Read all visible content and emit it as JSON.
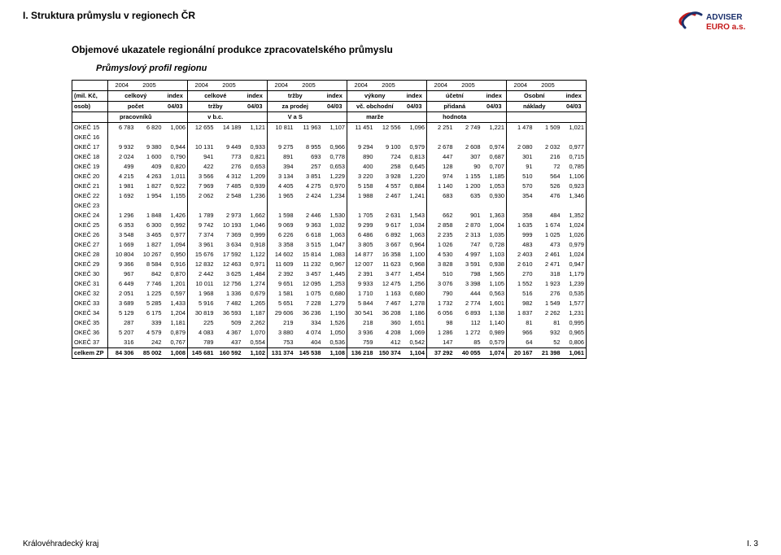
{
  "section_title": "I. Struktura průmyslu v regionech ČR",
  "subtitle": "Objemové ukazatele regionální produkce zpracovatelského průmyslu",
  "profile": "Průmyslový profil regionu",
  "footer_left": "Královéhradecký kraj",
  "footer_right": "I. 3",
  "logo": {
    "top_text": "ADVISER",
    "bottom_text": "EURO a.s.",
    "accent1": "#c51a1a",
    "accent2": "#1a2f6b"
  },
  "colors": {
    "text": "#000000",
    "bg": "#ffffff",
    "border": "#000000"
  },
  "years_row": [
    "2004",
    "2005",
    "",
    "2004",
    "2005",
    "",
    "2004",
    "2005",
    "",
    "2004",
    "2005",
    "",
    "2004",
    "2005",
    "",
    "2004",
    "2005",
    ""
  ],
  "header": {
    "row1_left": "(mil. Kč,",
    "row2_left": "osob)",
    "row1": [
      "celkový",
      "index",
      "celkové",
      "index",
      "tržby",
      "index",
      "výkony",
      "index",
      "účetní",
      "index",
      "Osobní",
      "index"
    ],
    "row2": [
      "počet",
      "04/03",
      "tržby",
      "04/03",
      "za prodej",
      "04/03",
      "vč. obchodní",
      "04/03",
      "přidaná",
      "04/03",
      "náklady",
      "04/03"
    ],
    "row3_left": "",
    "row3": [
      "pracovníků",
      "",
      "v b.c.",
      "",
      "V a S",
      "",
      "marže",
      "",
      "hodnota",
      "",
      "",
      ""
    ]
  },
  "rows": [
    {
      "label": "OKEČ 15",
      "v": [
        "6 783",
        "6 820",
        "1,006",
        "12 655",
        "14 189",
        "1,121",
        "10 811",
        "11 963",
        "1,107",
        "11 451",
        "12 556",
        "1,096",
        "2 251",
        "2 749",
        "1,221",
        "1 478",
        "1 509",
        "1,021"
      ]
    },
    {
      "label": "OKEČ 16",
      "v": [
        "",
        "",
        "",
        "",
        "",
        "",
        "",
        "",
        "",
        "",
        "",
        "",
        "",
        "",
        "",
        "",
        "",
        ""
      ]
    },
    {
      "label": "OKEČ 17",
      "v": [
        "9 932",
        "9 380",
        "0,944",
        "10 131",
        "9 449",
        "0,933",
        "9 275",
        "8 955",
        "0,966",
        "9 294",
        "9 100",
        "0,979",
        "2 678",
        "2 608",
        "0,974",
        "2 080",
        "2 032",
        "0,977"
      ]
    },
    {
      "label": "OKEČ 18",
      "v": [
        "2 024",
        "1 600",
        "0,790",
        "941",
        "773",
        "0,821",
        "891",
        "693",
        "0,778",
        "890",
        "724",
        "0,813",
        "447",
        "307",
        "0,687",
        "301",
        "216",
        "0,715"
      ]
    },
    {
      "label": "OKEČ 19",
      "v": [
        "499",
        "409",
        "0,820",
        "422",
        "276",
        "0,653",
        "394",
        "257",
        "0,653",
        "400",
        "258",
        "0,645",
        "128",
        "90",
        "0,707",
        "91",
        "72",
        "0,785"
      ]
    },
    {
      "label": "OKEČ 20",
      "v": [
        "4 215",
        "4 263",
        "1,011",
        "3 566",
        "4 312",
        "1,209",
        "3 134",
        "3 851",
        "1,229",
        "3 220",
        "3 928",
        "1,220",
        "974",
        "1 155",
        "1,185",
        "510",
        "564",
        "1,106"
      ]
    },
    {
      "label": "OKEČ 21",
      "v": [
        "1 981",
        "1 827",
        "0,922",
        "7 969",
        "7 485",
        "0,939",
        "4 405",
        "4 275",
        "0,970",
        "5 158",
        "4 557",
        "0,884",
        "1 140",
        "1 200",
        "1,053",
        "570",
        "526",
        "0,923"
      ]
    },
    {
      "label": "OKEČ 22",
      "v": [
        "1 692",
        "1 954",
        "1,155",
        "2 062",
        "2 548",
        "1,236",
        "1 965",
        "2 424",
        "1,234",
        "1 988",
        "2 467",
        "1,241",
        "683",
        "635",
        "0,930",
        "354",
        "476",
        "1,346"
      ]
    },
    {
      "label": "OKEČ 23",
      "v": [
        "",
        "",
        "",
        "",
        "",
        "",
        "",
        "",
        "",
        "",
        "",
        "",
        "",
        "",
        "",
        "",
        "",
        ""
      ]
    },
    {
      "label": "OKEČ 24",
      "v": [
        "1 296",
        "1 848",
        "1,426",
        "1 789",
        "2 973",
        "1,662",
        "1 598",
        "2 446",
        "1,530",
        "1 705",
        "2 631",
        "1,543",
        "662",
        "901",
        "1,363",
        "358",
        "484",
        "1,352"
      ]
    },
    {
      "label": "OKEČ 25",
      "v": [
        "6 353",
        "6 300",
        "0,992",
        "9 742",
        "10 193",
        "1,046",
        "9 069",
        "9 363",
        "1,032",
        "9 299",
        "9 617",
        "1,034",
        "2 858",
        "2 870",
        "1,004",
        "1 635",
        "1 674",
        "1,024"
      ]
    },
    {
      "label": "OKEČ 26",
      "v": [
        "3 548",
        "3 465",
        "0,977",
        "7 374",
        "7 369",
        "0,999",
        "6 226",
        "6 618",
        "1,063",
        "6 486",
        "6 892",
        "1,063",
        "2 235",
        "2 313",
        "1,035",
        "999",
        "1 025",
        "1,026"
      ]
    },
    {
      "label": "OKEČ 27",
      "v": [
        "1 669",
        "1 827",
        "1,094",
        "3 961",
        "3 634",
        "0,918",
        "3 358",
        "3 515",
        "1,047",
        "3 805",
        "3 667",
        "0,964",
        "1 026",
        "747",
        "0,728",
        "483",
        "473",
        "0,979"
      ]
    },
    {
      "label": "OKEČ 28",
      "v": [
        "10 804",
        "10 267",
        "0,950",
        "15 676",
        "17 592",
        "1,122",
        "14 602",
        "15 814",
        "1,083",
        "14 877",
        "16 358",
        "1,100",
        "4 530",
        "4 997",
        "1,103",
        "2 403",
        "2 461",
        "1,024"
      ]
    },
    {
      "label": "OKEČ 29",
      "v": [
        "9 366",
        "8 584",
        "0,916",
        "12 832",
        "12 463",
        "0,971",
        "11 609",
        "11 232",
        "0,967",
        "12 007",
        "11 623",
        "0,968",
        "3 828",
        "3 591",
        "0,938",
        "2 610",
        "2 471",
        "0,947"
      ]
    },
    {
      "label": "OKEČ 30",
      "v": [
        "967",
        "842",
        "0,870",
        "2 442",
        "3 625",
        "1,484",
        "2 392",
        "3 457",
        "1,445",
        "2 391",
        "3 477",
        "1,454",
        "510",
        "798",
        "1,565",
        "270",
        "318",
        "1,179"
      ]
    },
    {
      "label": "OKEČ 31",
      "v": [
        "6 449",
        "7 746",
        "1,201",
        "10 011",
        "12 756",
        "1,274",
        "9 651",
        "12 095",
        "1,253",
        "9 933",
        "12 475",
        "1,256",
        "3 076",
        "3 398",
        "1,105",
        "1 552",
        "1 923",
        "1,239"
      ]
    },
    {
      "label": "OKEČ 32",
      "v": [
        "2 051",
        "1 225",
        "0,597",
        "1 968",
        "1 336",
        "0,679",
        "1 581",
        "1 075",
        "0,680",
        "1 710",
        "1 163",
        "0,680",
        "790",
        "444",
        "0,563",
        "516",
        "276",
        "0,535"
      ]
    },
    {
      "label": "OKEČ 33",
      "v": [
        "3 689",
        "5 285",
        "1,433",
        "5 916",
        "7 482",
        "1,265",
        "5 651",
        "7 228",
        "1,279",
        "5 844",
        "7 467",
        "1,278",
        "1 732",
        "2 774",
        "1,601",
        "982",
        "1 549",
        "1,577"
      ]
    },
    {
      "label": "OKEČ 34",
      "v": [
        "5 129",
        "6 175",
        "1,204",
        "30 819",
        "36 593",
        "1,187",
        "29 606",
        "36 236",
        "1,190",
        "30 541",
        "36 208",
        "1,186",
        "6 056",
        "6 893",
        "1,138",
        "1 837",
        "2 262",
        "1,231"
      ]
    },
    {
      "label": "OKEČ 35",
      "v": [
        "287",
        "339",
        "1,181",
        "225",
        "509",
        "2,262",
        "219",
        "334",
        "1,526",
        "218",
        "360",
        "1,651",
        "98",
        "112",
        "1,140",
        "81",
        "81",
        "0,995"
      ]
    },
    {
      "label": "OKEČ 36",
      "v": [
        "5 207",
        "4 579",
        "0,879",
        "4 083",
        "4 367",
        "1,070",
        "3 880",
        "4 074",
        "1,050",
        "3 936",
        "4 208",
        "1,069",
        "1 286",
        "1 272",
        "0,989",
        "966",
        "932",
        "0,965"
      ]
    },
    {
      "label": "OKEČ 37",
      "v": [
        "316",
        "242",
        "0,767",
        "789",
        "437",
        "0,554",
        "753",
        "404",
        "0,536",
        "759",
        "412",
        "0,542",
        "147",
        "85",
        "0,579",
        "64",
        "52",
        "0,806"
      ]
    }
  ],
  "sum_row": {
    "label": "celkem ZP",
    "v": [
      "84 306",
      "85 002",
      "1,008",
      "145 681",
      "160 592",
      "1,102",
      "131 374",
      "145 538",
      "1,108",
      "136 218",
      "150 374",
      "1,104",
      "37 292",
      "40 055",
      "1,074",
      "20 167",
      "21 398",
      "1,061"
    ]
  }
}
